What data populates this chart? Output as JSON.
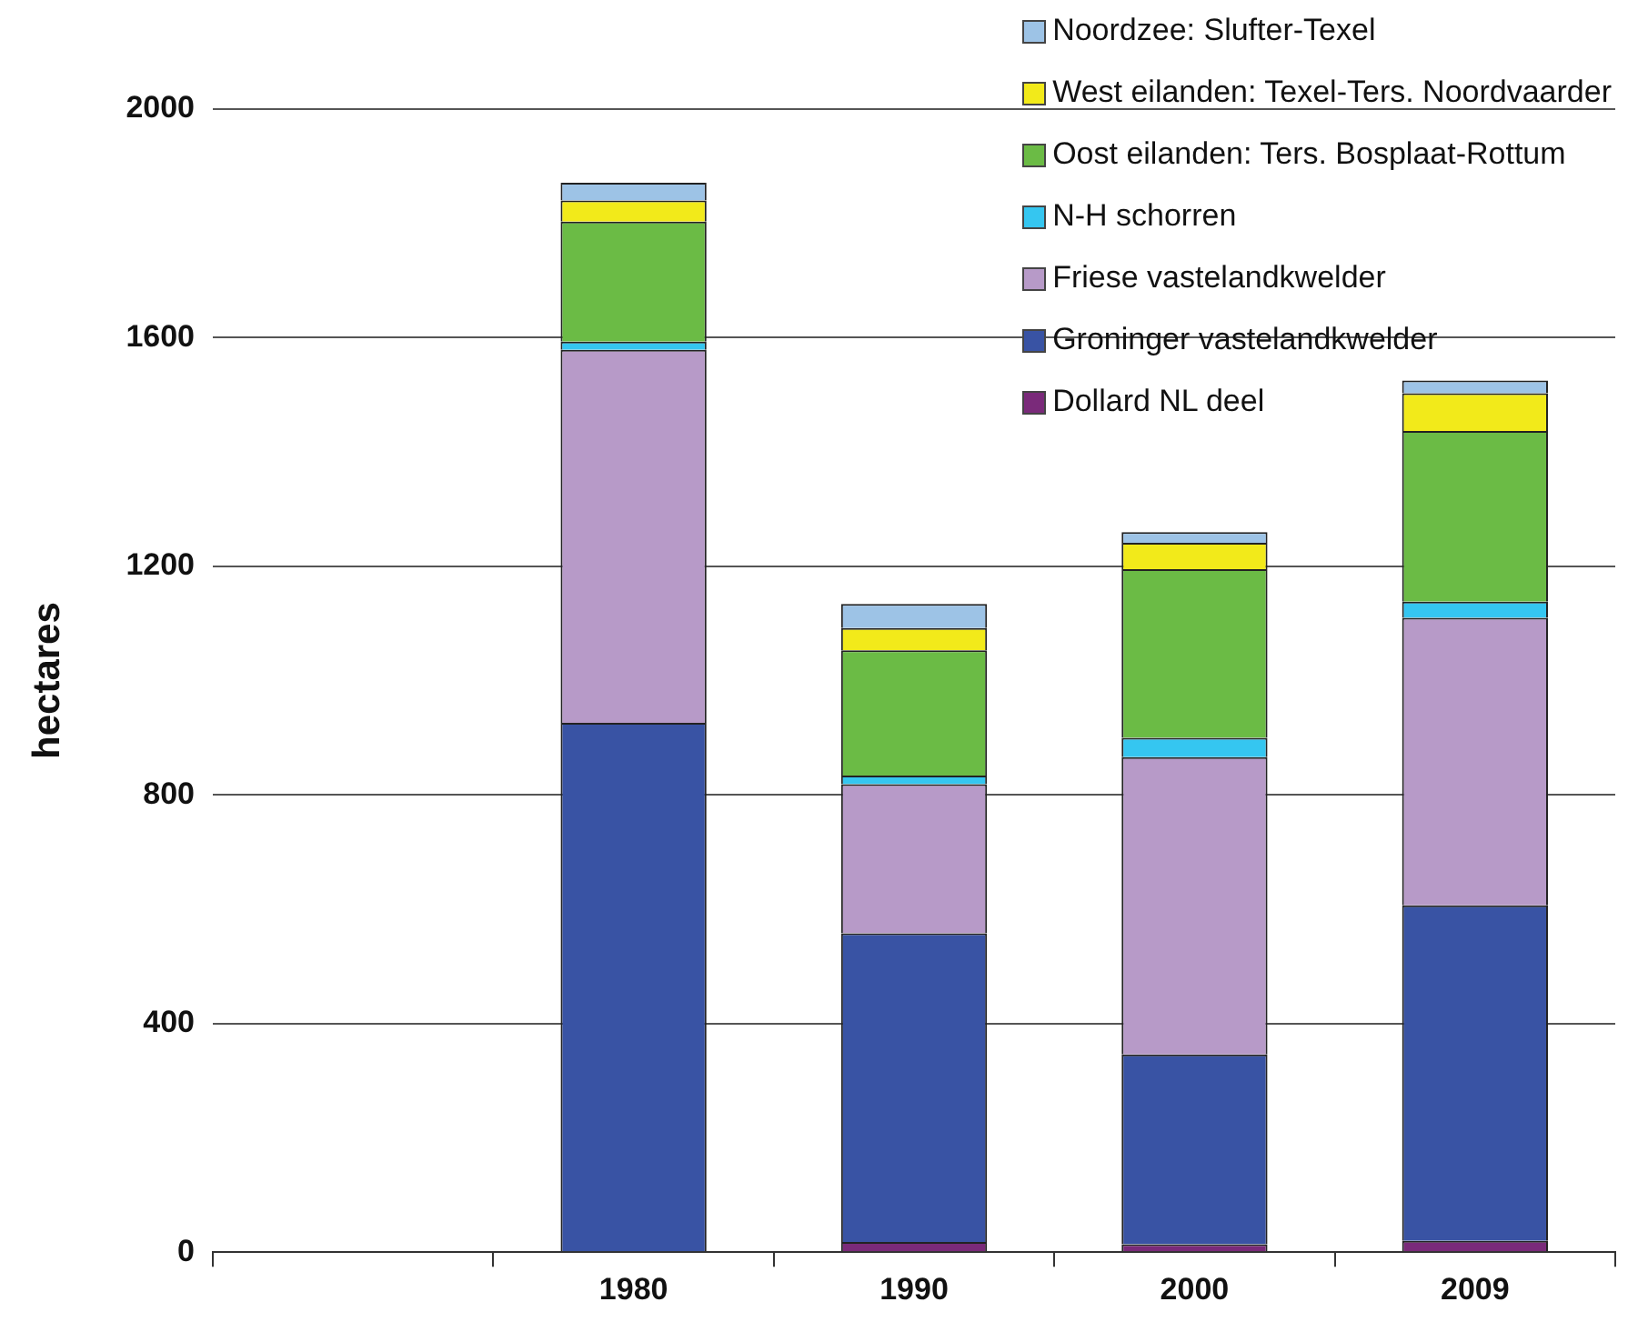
{
  "chart_data": {
    "type": "bar",
    "stacked": true,
    "ylabel": "hectares",
    "categories": [
      null,
      "1980",
      "1990",
      "2000",
      "2009"
    ],
    "ylim": [
      0,
      2000
    ],
    "yticks": [
      0,
      400,
      800,
      1200,
      1600,
      2000
    ],
    "grid": "y",
    "legend": "top right",
    "series": [
      {
        "name": "Dollard NL deel",
        "color": "#7a2a7a",
        "values": [
          null,
          0,
          18,
          14,
          20
        ]
      },
      {
        "name": "Groninger vastelandkwelder",
        "color": "#3953a4",
        "values": [
          null,
          926,
          540,
          332,
          587
        ]
      },
      {
        "name": "Friese vastelandkwelder",
        "color": "#b79ac8",
        "values": [
          null,
          653,
          261,
          520,
          503
        ]
      },
      {
        "name": "N-H schorren",
        "color": "#35c6f0",
        "values": [
          null,
          14,
          15,
          34,
          28
        ]
      },
      {
        "name": "Oost eilanden: Ters. Bosplaat-Rottum",
        "color": "#6bbb45",
        "values": [
          null,
          210,
          219,
          295,
          299
        ]
      },
      {
        "name": "West eilanden: Texel-Ters. Noordvaarder",
        "color": "#f2ea1a",
        "values": [
          null,
          37,
          39,
          46,
          66
        ]
      },
      {
        "name": "Noordzee: Slufter-Texel",
        "color": "#9dc3e6",
        "values": [
          null,
          31,
          42,
          19,
          22
        ]
      }
    ]
  }
}
